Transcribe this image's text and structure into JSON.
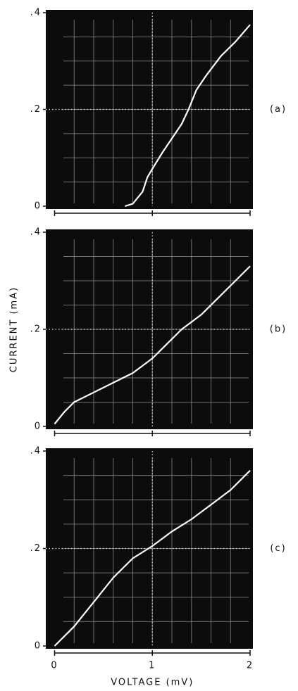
{
  "chart_data": [
    {
      "type": "line",
      "label": "(a)",
      "color": "#ffffff",
      "x": [
        0.72,
        0.8,
        0.9,
        0.95,
        1.0,
        1.1,
        1.2,
        1.3,
        1.37,
        1.45,
        1.55,
        1.7,
        1.85,
        2.0
      ],
      "values": [
        0,
        0.005,
        0.03,
        0.06,
        0.077,
        0.11,
        0.14,
        0.17,
        0.2,
        0.24,
        0.27,
        0.31,
        0.34,
        0.375
      ],
      "xlim": [
        -0.09,
        2
      ],
      "ylim": [
        0,
        0.4
      ],
      "yticks": [
        0,
        {
          "value": 0.2,
          "label": ".2"
        },
        {
          "value": 0.4,
          "label": ".4"
        }
      ],
      "grid": true
    },
    {
      "type": "line",
      "label": "(b)",
      "color": "#ffffff",
      "ylabel": "CURRENT (mA)",
      "x": [
        0,
        0.1,
        0.2,
        0.4,
        0.6,
        0.8,
        1.0,
        1.2,
        1.3,
        1.5,
        1.7,
        1.85,
        2.0
      ],
      "values": [
        0.005,
        0.03,
        0.05,
        0.07,
        0.09,
        0.11,
        0.14,
        0.18,
        0.2,
        0.23,
        0.27,
        0.3,
        0.33
      ],
      "xlim": [
        -0.09,
        2
      ],
      "ylim": [
        0,
        0.4
      ],
      "yticks": [
        0,
        {
          "value": 0.2,
          "label": ".2"
        },
        {
          "value": 0.4,
          "label": ".4"
        }
      ],
      "grid": true
    },
    {
      "type": "line",
      "label": "(c)",
      "color": "#ffffff",
      "xlabel": "VOLTAGE (mV)",
      "x": [
        0,
        0.2,
        0.4,
        0.6,
        0.8,
        1.0,
        1.2,
        1.4,
        1.6,
        1.8,
        2.0
      ],
      "values": [
        0,
        0.04,
        0.09,
        0.14,
        0.18,
        0.205,
        0.235,
        0.26,
        0.29,
        0.32,
        0.36
      ],
      "xlim": [
        -0.09,
        2
      ],
      "ylim": [
        0,
        0.4
      ],
      "xticks": [
        0,
        1,
        2
      ],
      "yticks": [
        0,
        {
          "value": 0.2,
          "label": ".2"
        },
        {
          "value": 0.4,
          "label": ".4"
        }
      ],
      "grid": true
    }
  ]
}
